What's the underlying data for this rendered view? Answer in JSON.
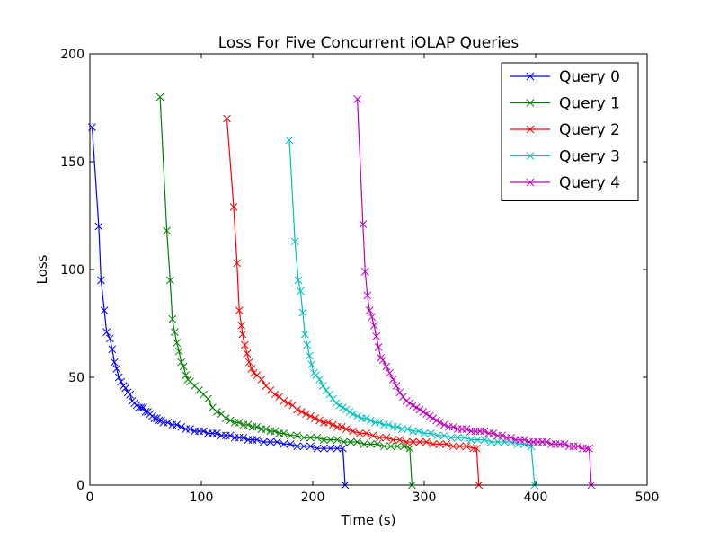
{
  "chart_data": {
    "type": "line",
    "title": "Loss For Five Concurrent iOLAP Queries",
    "xlabel": "Time (s)",
    "ylabel": "Loss",
    "xlim": [
      0,
      500
    ],
    "ylim": [
      0,
      200
    ],
    "xticks": [
      0,
      100,
      200,
      300,
      400,
      500
    ],
    "yticks": [
      0,
      50,
      100,
      150,
      200
    ],
    "grid": false,
    "legend_position": "top-right",
    "marker": "x",
    "series": [
      {
        "name": "Query 0",
        "color": "#0000ff",
        "points": [
          [
            2,
            166
          ],
          [
            8,
            120
          ],
          [
            10,
            95
          ],
          [
            13,
            81
          ],
          [
            15,
            71
          ],
          [
            18,
            68
          ],
          [
            20,
            63
          ],
          [
            22,
            57
          ],
          [
            24,
            54
          ],
          [
            26,
            50
          ],
          [
            28,
            48
          ],
          [
            30,
            46
          ],
          [
            32,
            45
          ],
          [
            34,
            43
          ],
          [
            36,
            42
          ],
          [
            38,
            39
          ],
          [
            40,
            38
          ],
          [
            42,
            37
          ],
          [
            44,
            36
          ],
          [
            46,
            36
          ],
          [
            48,
            36
          ],
          [
            50,
            34
          ],
          [
            52,
            34
          ],
          [
            54,
            33
          ],
          [
            56,
            32
          ],
          [
            58,
            31
          ],
          [
            60,
            31
          ],
          [
            62,
            30
          ],
          [
            64,
            30
          ],
          [
            66,
            29
          ],
          [
            70,
            29
          ],
          [
            74,
            28
          ],
          [
            78,
            28
          ],
          [
            82,
            27
          ],
          [
            86,
            26
          ],
          [
            90,
            26
          ],
          [
            94,
            25
          ],
          [
            98,
            25
          ],
          [
            102,
            25
          ],
          [
            106,
            24
          ],
          [
            110,
            24
          ],
          [
            114,
            24
          ],
          [
            118,
            23
          ],
          [
            122,
            23
          ],
          [
            126,
            23
          ],
          [
            130,
            22
          ],
          [
            134,
            22
          ],
          [
            138,
            22
          ],
          [
            142,
            21
          ],
          [
            146,
            21
          ],
          [
            150,
            21
          ],
          [
            156,
            20
          ],
          [
            162,
            20
          ],
          [
            168,
            20
          ],
          [
            174,
            19
          ],
          [
            180,
            19
          ],
          [
            186,
            18
          ],
          [
            192,
            18
          ],
          [
            198,
            18
          ],
          [
            204,
            17
          ],
          [
            210,
            17
          ],
          [
            216,
            17
          ],
          [
            222,
            17
          ],
          [
            227,
            17
          ],
          [
            229,
            0
          ]
        ]
      },
      {
        "name": "Query 1",
        "color": "#008000",
        "points": [
          [
            63,
            180
          ],
          [
            69,
            118
          ],
          [
            72,
            95
          ],
          [
            74,
            77
          ],
          [
            76,
            71
          ],
          [
            78,
            66
          ],
          [
            80,
            62
          ],
          [
            82,
            57
          ],
          [
            84,
            55
          ],
          [
            86,
            51
          ],
          [
            88,
            49
          ],
          [
            90,
            48
          ],
          [
            94,
            46
          ],
          [
            98,
            44
          ],
          [
            102,
            42
          ],
          [
            106,
            40
          ],
          [
            110,
            36
          ],
          [
            114,
            34
          ],
          [
            118,
            33
          ],
          [
            122,
            31
          ],
          [
            126,
            30
          ],
          [
            130,
            29
          ],
          [
            134,
            29
          ],
          [
            138,
            28
          ],
          [
            142,
            28
          ],
          [
            146,
            27
          ],
          [
            150,
            27
          ],
          [
            154,
            26
          ],
          [
            158,
            26
          ],
          [
            162,
            25
          ],
          [
            166,
            25
          ],
          [
            170,
            24
          ],
          [
            174,
            24
          ],
          [
            180,
            23
          ],
          [
            186,
            23
          ],
          [
            192,
            22
          ],
          [
            198,
            22
          ],
          [
            204,
            22
          ],
          [
            210,
            21
          ],
          [
            216,
            21
          ],
          [
            222,
            21
          ],
          [
            228,
            20
          ],
          [
            234,
            20
          ],
          [
            240,
            20
          ],
          [
            246,
            19
          ],
          [
            252,
            19
          ],
          [
            258,
            19
          ],
          [
            264,
            18
          ],
          [
            270,
            18
          ],
          [
            276,
            18
          ],
          [
            282,
            18
          ],
          [
            287,
            17
          ],
          [
            289,
            0
          ]
        ]
      },
      {
        "name": "Query 2",
        "color": "#ff0000",
        "points": [
          [
            123,
            170
          ],
          [
            129,
            129
          ],
          [
            132,
            103
          ],
          [
            134,
            81
          ],
          [
            136,
            74
          ],
          [
            137,
            70
          ],
          [
            139,
            65
          ],
          [
            141,
            61
          ],
          [
            143,
            57
          ],
          [
            145,
            54
          ],
          [
            147,
            52
          ],
          [
            150,
            51
          ],
          [
            154,
            49
          ],
          [
            158,
            46
          ],
          [
            162,
            44
          ],
          [
            166,
            42
          ],
          [
            170,
            41
          ],
          [
            174,
            39
          ],
          [
            178,
            38
          ],
          [
            182,
            37
          ],
          [
            186,
            35
          ],
          [
            190,
            34
          ],
          [
            194,
            33
          ],
          [
            198,
            32
          ],
          [
            202,
            31
          ],
          [
            206,
            30
          ],
          [
            210,
            29
          ],
          [
            214,
            29
          ],
          [
            218,
            28
          ],
          [
            222,
            27
          ],
          [
            226,
            27
          ],
          [
            230,
            26
          ],
          [
            236,
            25
          ],
          [
            242,
            24
          ],
          [
            248,
            24
          ],
          [
            254,
            23
          ],
          [
            260,
            22
          ],
          [
            266,
            22
          ],
          [
            272,
            21
          ],
          [
            278,
            21
          ],
          [
            284,
            20
          ],
          [
            290,
            20
          ],
          [
            296,
            20
          ],
          [
            302,
            20
          ],
          [
            308,
            19
          ],
          [
            314,
            19
          ],
          [
            320,
            19
          ],
          [
            326,
            18
          ],
          [
            332,
            18
          ],
          [
            338,
            18
          ],
          [
            344,
            17
          ],
          [
            347,
            17
          ],
          [
            349,
            0
          ]
        ]
      },
      {
        "name": "Query 3",
        "color": "#00bfbf",
        "points": [
          [
            179,
            160
          ],
          [
            184,
            113
          ],
          [
            187,
            95
          ],
          [
            189,
            90
          ],
          [
            191,
            80
          ],
          [
            193,
            70
          ],
          [
            195,
            65
          ],
          [
            197,
            60
          ],
          [
            199,
            56
          ],
          [
            201,
            52
          ],
          [
            203,
            51
          ],
          [
            206,
            49
          ],
          [
            209,
            46
          ],
          [
            212,
            44
          ],
          [
            215,
            42
          ],
          [
            218,
            40
          ],
          [
            221,
            38
          ],
          [
            224,
            37
          ],
          [
            227,
            36
          ],
          [
            230,
            35
          ],
          [
            233,
            34
          ],
          [
            236,
            33
          ],
          [
            240,
            32
          ],
          [
            244,
            31
          ],
          [
            248,
            31
          ],
          [
            252,
            30
          ],
          [
            256,
            29
          ],
          [
            260,
            29
          ],
          [
            264,
            28
          ],
          [
            268,
            28
          ],
          [
            272,
            27
          ],
          [
            276,
            27
          ],
          [
            280,
            26
          ],
          [
            285,
            26
          ],
          [
            290,
            25
          ],
          [
            295,
            25
          ],
          [
            300,
            24
          ],
          [
            306,
            24
          ],
          [
            312,
            23
          ],
          [
            318,
            23
          ],
          [
            324,
            22
          ],
          [
            330,
            22
          ],
          [
            336,
            22
          ],
          [
            342,
            21
          ],
          [
            348,
            21
          ],
          [
            354,
            21
          ],
          [
            360,
            20
          ],
          [
            366,
            20
          ],
          [
            372,
            20
          ],
          [
            378,
            20
          ],
          [
            384,
            19
          ],
          [
            390,
            19
          ],
          [
            396,
            18
          ],
          [
            399,
            0
          ]
        ]
      },
      {
        "name": "Query 4",
        "color": "#bf00bf",
        "points": [
          [
            240,
            179
          ],
          [
            245,
            121
          ],
          [
            247,
            99
          ],
          [
            249,
            88
          ],
          [
            251,
            81
          ],
          [
            253,
            78
          ],
          [
            255,
            74
          ],
          [
            257,
            69
          ],
          [
            259,
            64
          ],
          [
            261,
            59
          ],
          [
            263,
            58
          ],
          [
            266,
            55
          ],
          [
            269,
            52
          ],
          [
            272,
            49
          ],
          [
            275,
            46
          ],
          [
            278,
            43
          ],
          [
            281,
            41
          ],
          [
            284,
            39
          ],
          [
            287,
            38
          ],
          [
            290,
            37
          ],
          [
            293,
            36
          ],
          [
            296,
            35
          ],
          [
            299,
            34
          ],
          [
            302,
            33
          ],
          [
            305,
            32
          ],
          [
            308,
            31
          ],
          [
            311,
            30
          ],
          [
            314,
            29
          ],
          [
            318,
            28
          ],
          [
            322,
            27
          ],
          [
            326,
            27
          ],
          [
            330,
            26
          ],
          [
            334,
            26
          ],
          [
            338,
            26
          ],
          [
            342,
            25
          ],
          [
            346,
            25
          ],
          [
            350,
            25
          ],
          [
            354,
            25
          ],
          [
            358,
            24
          ],
          [
            362,
            24
          ],
          [
            366,
            23
          ],
          [
            370,
            23
          ],
          [
            374,
            22
          ],
          [
            378,
            22
          ],
          [
            382,
            21
          ],
          [
            386,
            21
          ],
          [
            390,
            21
          ],
          [
            394,
            20
          ],
          [
            398,
            20
          ],
          [
            402,
            20
          ],
          [
            406,
            20
          ],
          [
            410,
            20
          ],
          [
            414,
            19
          ],
          [
            418,
            19
          ],
          [
            422,
            19
          ],
          [
            426,
            19
          ],
          [
            430,
            18
          ],
          [
            434,
            18
          ],
          [
            438,
            18
          ],
          [
            442,
            17
          ],
          [
            446,
            17
          ],
          [
            448,
            17
          ],
          [
            450,
            0
          ]
        ]
      }
    ]
  }
}
